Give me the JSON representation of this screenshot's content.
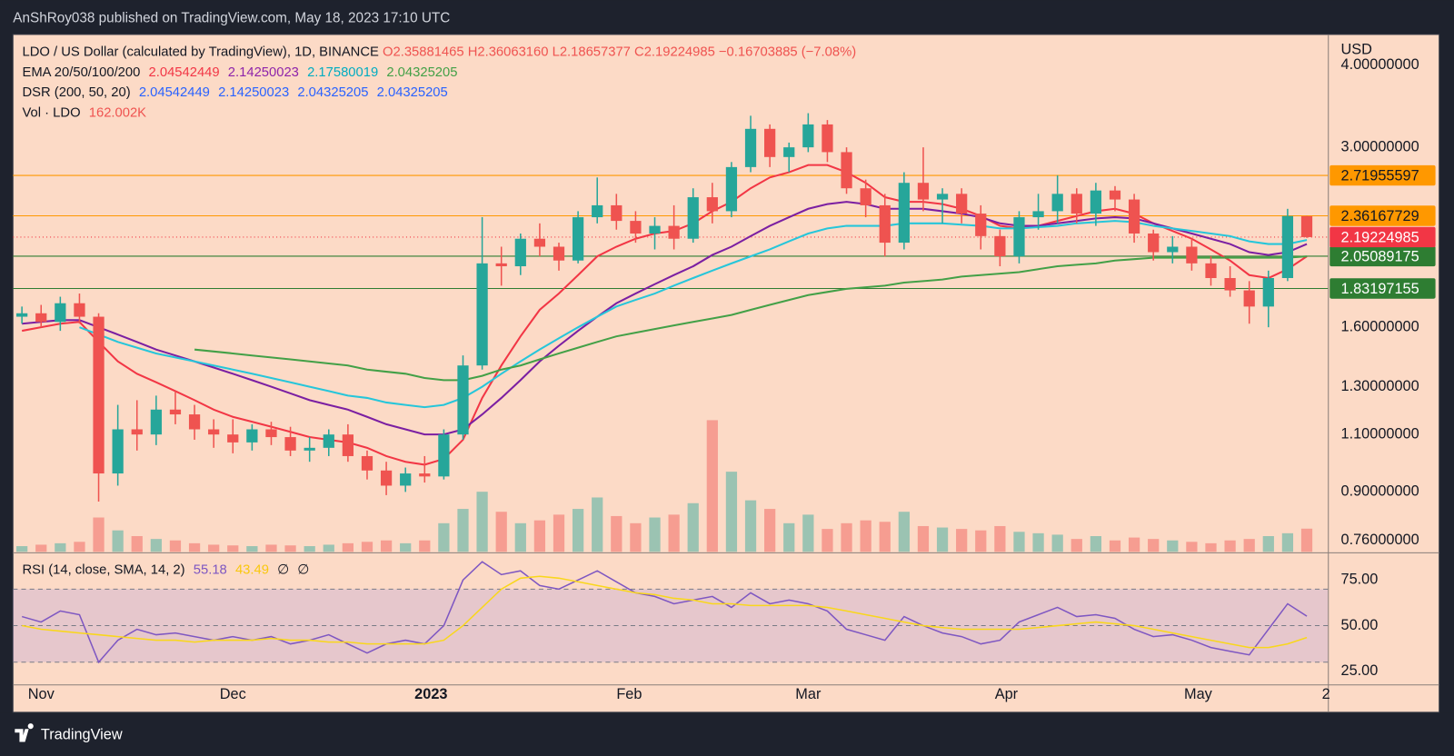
{
  "header": {
    "publisher": "AnShRoy038 published on TradingView.com, May 18, 2023 17:10 UTC"
  },
  "footer": {
    "brand": "TradingView"
  },
  "chart_data": [
    {
      "type": "candlestick",
      "title": "LDO / US Dollar (calculated by TradingView), 1D, BINANCE",
      "ohlc_labels": [
        "O2.35881465",
        "H2.36063160",
        "L2.18657377",
        "C2.19224985"
      ],
      "change_label": "−0.16703885 (−7.08%)",
      "y_axis_title": "USD",
      "log_scale": true,
      "grid": false,
      "up_color": "#26a69a",
      "down_color": "#ef5350",
      "xlim": [
        -0.4,
        205.3
      ],
      "xticks": [
        {
          "value": 4,
          "label": "Nov"
        },
        {
          "value": 34,
          "label": "Dec"
        },
        {
          "value": 65,
          "label": "2023"
        },
        {
          "value": 96,
          "label": "Feb"
        },
        {
          "value": 124,
          "label": "Mar"
        },
        {
          "value": 155,
          "label": "Apr"
        },
        {
          "value": 185,
          "label": "May"
        },
        {
          "value": 205,
          "label": "2"
        }
      ],
      "ylim": [
        0.73,
        4.45
      ],
      "yticks": [
        {
          "value": 0.76,
          "label": "0.76000000"
        },
        {
          "value": 0.9,
          "label": "0.90000000"
        },
        {
          "value": 1.1,
          "label": "1.10000000"
        },
        {
          "value": 1.3,
          "label": "1.30000000"
        },
        {
          "value": 1.6,
          "label": "1.60000000"
        },
        {
          "value": 3,
          "label": "3.00000000"
        },
        {
          "value": 4,
          "label": "4.00000000"
        }
      ],
      "x": [
        1,
        4,
        7,
        10,
        13,
        16,
        19,
        22,
        25,
        28,
        31,
        34,
        37,
        40,
        43,
        46,
        49,
        52,
        55,
        58,
        61,
        64,
        67,
        70,
        73,
        76,
        79,
        82,
        85,
        88,
        91,
        94,
        97,
        100,
        103,
        106,
        109,
        112,
        115,
        118,
        121,
        124,
        127,
        130,
        133,
        136,
        139,
        142,
        145,
        148,
        151,
        154,
        157,
        160,
        163,
        166,
        169,
        172,
        175,
        178,
        181,
        184,
        187,
        190,
        193,
        196,
        199,
        202
      ],
      "open": [
        1.66,
        1.68,
        1.63,
        1.74,
        1.66,
        0.96,
        1.12,
        1.1,
        1.2,
        1.18,
        1.12,
        1.1,
        1.07,
        1.12,
        1.09,
        1.04,
        1.05,
        1.1,
        1.02,
        0.97,
        0.92,
        0.96,
        0.95,
        1.1,
        1.4,
        2.0,
        1.98,
        2.18,
        2.12,
        2.02,
        2.35,
        2.45,
        2.32,
        2.22,
        2.28,
        2.18,
        2.52,
        2.4,
        2.8,
        3.2,
        2.9,
        3.0,
        3.25,
        2.95,
        2.6,
        2.45,
        2.15,
        2.65,
        2.5,
        2.55,
        2.38,
        2.2,
        2.05,
        2.35,
        2.4,
        2.55,
        2.38,
        2.58,
        2.5,
        2.22,
        2.08,
        2.12,
        2.0,
        1.9,
        1.82,
        1.72,
        1.9,
        2.35881465
      ],
      "high": [
        1.72,
        1.73,
        1.78,
        1.8,
        1.68,
        1.22,
        1.24,
        1.26,
        1.28,
        1.22,
        1.16,
        1.16,
        1.14,
        1.15,
        1.13,
        1.09,
        1.12,
        1.14,
        1.04,
        1.0,
        0.98,
        1.02,
        1.12,
        1.45,
        2.35,
        2.12,
        2.22,
        2.3,
        2.15,
        2.4,
        2.7,
        2.55,
        2.4,
        2.35,
        2.45,
        2.6,
        2.65,
        2.85,
        3.35,
        3.25,
        3.05,
        3.38,
        3.3,
        3.0,
        2.68,
        2.55,
        2.75,
        3.0,
        2.6,
        2.6,
        2.45,
        2.25,
        2.4,
        2.55,
        2.72,
        2.6,
        2.65,
        2.62,
        2.55,
        2.25,
        2.2,
        2.18,
        2.05,
        1.98,
        1.88,
        1.95,
        2.42,
        2.3606316
      ],
      "low": [
        1.62,
        1.6,
        1.58,
        1.62,
        0.87,
        0.92,
        1.04,
        1.06,
        1.14,
        1.08,
        1.05,
        1.03,
        1.04,
        1.06,
        1.02,
        1.0,
        1.02,
        1.0,
        0.94,
        0.89,
        0.9,
        0.93,
        0.94,
        1.08,
        1.38,
        1.85,
        1.92,
        2.05,
        1.95,
        2.0,
        2.3,
        2.25,
        2.15,
        2.1,
        2.1,
        2.15,
        2.3,
        2.35,
        2.75,
        2.8,
        2.75,
        2.95,
        2.85,
        2.55,
        2.35,
        2.05,
        2.1,
        2.4,
        2.3,
        2.3,
        2.1,
        1.98,
        2.0,
        2.25,
        2.3,
        2.3,
        2.28,
        2.4,
        2.15,
        2.02,
        2.0,
        1.95,
        1.85,
        1.78,
        1.62,
        1.6,
        1.88,
        2.18657377
      ],
      "close": [
        1.68,
        1.63,
        1.74,
        1.66,
        0.96,
        1.12,
        1.1,
        1.2,
        1.18,
        1.12,
        1.1,
        1.07,
        1.12,
        1.09,
        1.04,
        1.05,
        1.1,
        1.02,
        0.97,
        0.92,
        0.96,
        0.95,
        1.1,
        1.4,
        2.0,
        1.98,
        2.18,
        2.12,
        2.02,
        2.35,
        2.45,
        2.32,
        2.22,
        2.28,
        2.18,
        2.52,
        2.4,
        2.8,
        3.2,
        2.9,
        3.0,
        3.25,
        2.95,
        2.6,
        2.45,
        2.15,
        2.65,
        2.5,
        2.55,
        2.38,
        2.2,
        2.05,
        2.35,
        2.4,
        2.55,
        2.38,
        2.58,
        2.5,
        2.22,
        2.08,
        2.12,
        2.0,
        1.9,
        1.82,
        1.72,
        1.9,
        2.36,
        2.19224985
      ],
      "volume": [
        40,
        50,
        60,
        70,
        240,
        150,
        110,
        90,
        80,
        60,
        50,
        45,
        40,
        50,
        45,
        40,
        50,
        60,
        70,
        80,
        60,
        80,
        200,
        300,
        420,
        280,
        200,
        220,
        260,
        300,
        380,
        250,
        200,
        240,
        260,
        340,
        920,
        560,
        360,
        300,
        200,
        260,
        160,
        200,
        220,
        210,
        280,
        180,
        170,
        160,
        150,
        180,
        140,
        130,
        120,
        90,
        110,
        80,
        100,
        90,
        80,
        70,
        60,
        80,
        90,
        110,
        130,
        162
      ],
      "indicators": [
        {
          "name": "EMA 20/50/100/200",
          "labels": [
            {
              "text": "2.04542449",
              "color": "#f23645"
            },
            {
              "text": "2.14250023",
              "color": "#8e24aa"
            },
            {
              "text": "2.17580019",
              "color": "#00acc1"
            },
            {
              "text": "2.04325205",
              "color": "#43a047"
            }
          ]
        },
        {
          "name": "DSR (200, 50, 20)",
          "labels": [
            {
              "text": "2.04542449",
              "color": "#2962ff"
            },
            {
              "text": "2.14250023",
              "color": "#2962ff"
            },
            {
              "text": "2.04325205",
              "color": "#2962ff"
            },
            {
              "text": "2.04325205",
              "color": "#2962ff"
            }
          ]
        },
        {
          "name": "Vol · LDO",
          "labels": [
            {
              "text": "162.002K",
              "color": "#ef5350"
            }
          ]
        }
      ],
      "series": [
        {
          "color": "#f23645",
          "values": [
            1.58,
            1.6,
            1.62,
            1.63,
            1.52,
            1.42,
            1.36,
            1.32,
            1.28,
            1.24,
            1.2,
            1.17,
            1.15,
            1.13,
            1.11,
            1.09,
            1.08,
            1.07,
            1.05,
            1.02,
            1.0,
            0.99,
            1.01,
            1.08,
            1.25,
            1.4,
            1.55,
            1.7,
            1.8,
            1.92,
            2.05,
            2.12,
            2.18,
            2.22,
            2.24,
            2.3,
            2.4,
            2.48,
            2.6,
            2.7,
            2.75,
            2.82,
            2.82,
            2.75,
            2.65,
            2.52,
            2.48,
            2.48,
            2.46,
            2.42,
            2.36,
            2.28,
            2.26,
            2.28,
            2.32,
            2.36,
            2.4,
            2.42,
            2.38,
            2.3,
            2.24,
            2.18,
            2.1,
            2.02,
            1.92,
            1.9,
            1.96,
            2.05
          ]
        },
        {
          "color": "#7b1fa2",
          "values": [
            1.62,
            1.63,
            1.64,
            1.64,
            1.6,
            1.56,
            1.52,
            1.48,
            1.45,
            1.42,
            1.39,
            1.36,
            1.33,
            1.3,
            1.27,
            1.24,
            1.22,
            1.2,
            1.17,
            1.14,
            1.12,
            1.1,
            1.1,
            1.12,
            1.18,
            1.25,
            1.33,
            1.42,
            1.5,
            1.58,
            1.66,
            1.74,
            1.8,
            1.86,
            1.92,
            1.98,
            2.06,
            2.12,
            2.2,
            2.28,
            2.35,
            2.42,
            2.46,
            2.48,
            2.46,
            2.42,
            2.42,
            2.42,
            2.4,
            2.38,
            2.35,
            2.3,
            2.28,
            2.28,
            2.3,
            2.32,
            2.34,
            2.35,
            2.34,
            2.3,
            2.26,
            2.22,
            2.18,
            2.14,
            2.08,
            2.06,
            2.08,
            2.14
          ]
        },
        {
          "color": "#26c6da",
          "values": [
            null,
            null,
            null,
            1.6,
            1.56,
            1.52,
            1.49,
            1.46,
            1.44,
            1.42,
            1.4,
            1.38,
            1.36,
            1.34,
            1.32,
            1.3,
            1.28,
            1.26,
            1.25,
            1.23,
            1.22,
            1.21,
            1.22,
            1.25,
            1.3,
            1.36,
            1.42,
            1.48,
            1.54,
            1.6,
            1.66,
            1.72,
            1.76,
            1.8,
            1.85,
            1.9,
            1.95,
            2.0,
            2.05,
            2.1,
            2.16,
            2.22,
            2.26,
            2.28,
            2.28,
            2.28,
            2.3,
            2.3,
            2.3,
            2.29,
            2.28,
            2.26,
            2.26,
            2.27,
            2.28,
            2.3,
            2.31,
            2.32,
            2.31,
            2.28,
            2.26,
            2.24,
            2.22,
            2.2,
            2.16,
            2.14,
            2.14,
            2.17
          ]
        },
        {
          "color": "#43a047",
          "values": [
            null,
            null,
            null,
            null,
            null,
            null,
            null,
            null,
            null,
            1.48,
            1.47,
            1.46,
            1.45,
            1.44,
            1.43,
            1.42,
            1.41,
            1.4,
            1.38,
            1.37,
            1.36,
            1.34,
            1.33,
            1.33,
            1.35,
            1.38,
            1.4,
            1.43,
            1.46,
            1.49,
            1.52,
            1.55,
            1.57,
            1.59,
            1.61,
            1.63,
            1.65,
            1.67,
            1.7,
            1.73,
            1.76,
            1.79,
            1.81,
            1.83,
            1.84,
            1.85,
            1.87,
            1.88,
            1.89,
            1.91,
            1.92,
            1.93,
            1.94,
            1.96,
            1.98,
            1.99,
            2.0,
            2.02,
            2.03,
            2.04,
            2.04,
            2.04,
            2.04,
            2.04,
            2.04,
            2.04,
            2.04,
            2.05
          ]
        }
      ],
      "price_lines": [
        {
          "value": 2.71955597,
          "label": "2.71955597",
          "color": "#ff9800"
        },
        {
          "value": 2.36167729,
          "label": "2.36167729",
          "color": "#ff9800"
        },
        {
          "value": 2.05089175,
          "label": "2.05089175",
          "color": "#2e7d32"
        },
        {
          "value": 1.83197155,
          "label": "1.83197155",
          "color": "#2e7d32"
        }
      ],
      "last_price": {
        "value": 2.19224985,
        "label": "2.19224985",
        "color": "#f23645"
      }
    },
    {
      "type": "line",
      "title": "RSI (14, close, SMA, 14, 2)",
      "legend_values": [
        {
          "text": "55.18",
          "color": "#7e57c2"
        },
        {
          "text": "43.49",
          "color": "#f9c80e"
        },
        {
          "text": "∅",
          "color": "#131722"
        },
        {
          "text": "∅",
          "color": "#131722"
        }
      ],
      "ylim": [
        17.8,
        88.9
      ],
      "yticks": [
        {
          "value": 25,
          "label": "25.00"
        },
        {
          "value": 50,
          "label": "50.00"
        },
        {
          "value": 75,
          "label": "75.00"
        }
      ],
      "band_lines": [
        70,
        50,
        30
      ],
      "band_color": "#b39ddb",
      "series": [
        {
          "color": "#7e57c2",
          "values": [
            55,
            52,
            58,
            56,
            30,
            42,
            48,
            45,
            46,
            44,
            42,
            44,
            42,
            44,
            40,
            42,
            45,
            40,
            35,
            40,
            42,
            40,
            50,
            75,
            85,
            78,
            80,
            72,
            70,
            75,
            80,
            74,
            68,
            66,
            62,
            64,
            66,
            60,
            68,
            62,
            64,
            62,
            58,
            48,
            45,
            42,
            55,
            50,
            46,
            44,
            40,
            42,
            52,
            56,
            60,
            55,
            56,
            54,
            48,
            44,
            45,
            42,
            38,
            36,
            34,
            48,
            62,
            55.18
          ]
        },
        {
          "color": "#f9d71c",
          "values": [
            50,
            48,
            47,
            46,
            45,
            44,
            43,
            42,
            42,
            41,
            42,
            42,
            42,
            43,
            42,
            42,
            41,
            41,
            40,
            40,
            40,
            40,
            42,
            50,
            60,
            70,
            76,
            77,
            76,
            74,
            72,
            70,
            68,
            67,
            65,
            64,
            62,
            62,
            61,
            61,
            61,
            61,
            60,
            58,
            56,
            54,
            52,
            50,
            49,
            48,
            48,
            48,
            48,
            49,
            50,
            51,
            52,
            51,
            50,
            48,
            46,
            44,
            42,
            40,
            38,
            38,
            40,
            43.49
          ]
        }
      ]
    }
  ]
}
